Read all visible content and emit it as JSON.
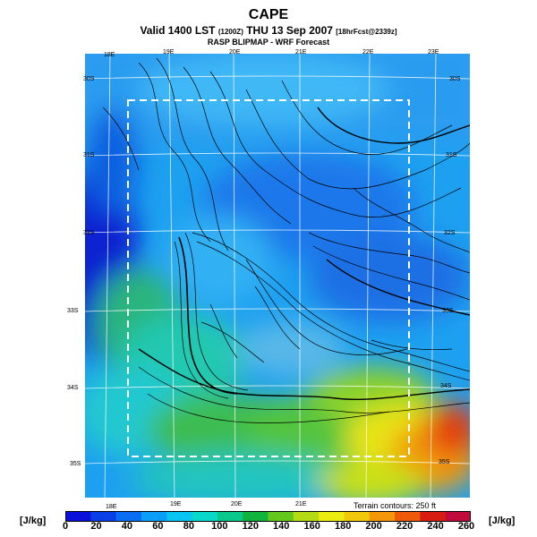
{
  "header": {
    "title": "CAPE",
    "valid_main": "Valid 1400 LST",
    "valid_utc": "(1200Z)",
    "valid_date": "THU 13 Sep 2007",
    "valid_fcst": "[18hrFcst@2339z]",
    "subtitle": "RASP BLIPMAP - WRF Forecast"
  },
  "map": {
    "top_lon_labels": [
      "18E",
      "19E",
      "20E",
      "21E",
      "22E",
      "23E"
    ],
    "bottom_lon_labels": [
      "18E",
      "19E",
      "20E",
      "21E"
    ],
    "left_lat_labels": [
      "30S",
      "31S",
      "32S",
      "33S",
      "34S",
      "35S"
    ],
    "right_lat_labels": [
      "30S",
      "31S",
      "32S",
      "33S",
      "34S",
      "35S"
    ],
    "terrain_note": "Terrain contours: 250 ft"
  },
  "colorbar": {
    "unit_left": "[J/kg]",
    "unit_right": "[J/kg]",
    "labels": [
      "0",
      "20",
      "40",
      "60",
      "80",
      "100",
      "120",
      "140",
      "160",
      "180",
      "200",
      "220",
      "240",
      "260"
    ],
    "colors": [
      "#0a10d8",
      "#0a3ee6",
      "#0a6ef2",
      "#0a9ef8",
      "#08c4f2",
      "#08d8c8",
      "#0ac88a",
      "#10b43c",
      "#64c81c",
      "#b4dc14",
      "#ecec10",
      "#f0c80c",
      "#f2960a",
      "#ee5a0a",
      "#d81c12",
      "#c00a3c"
    ]
  }
}
